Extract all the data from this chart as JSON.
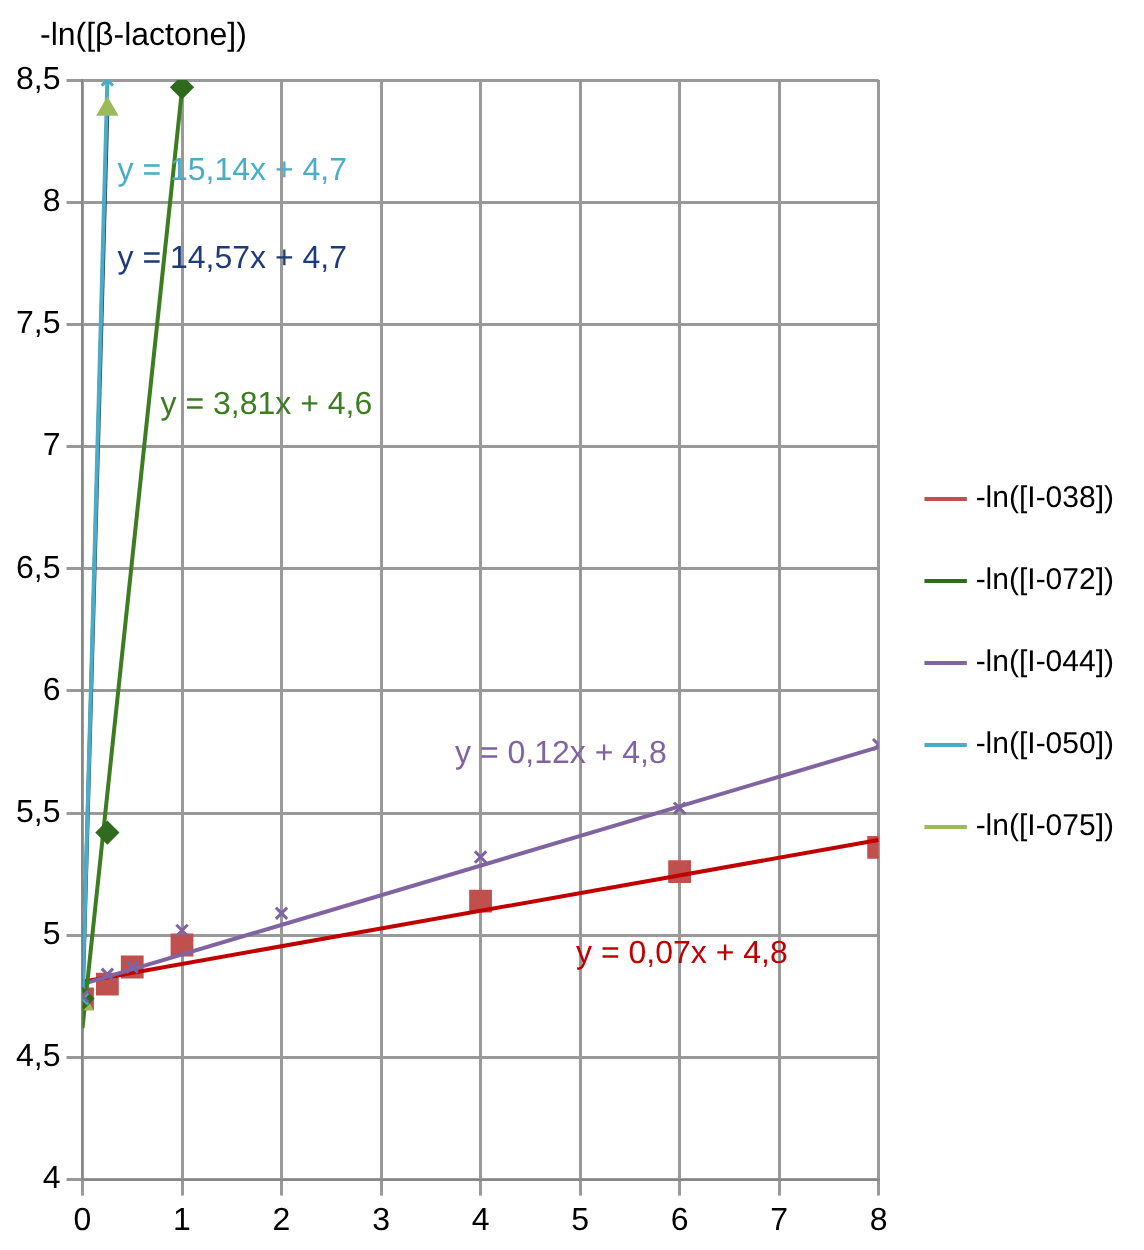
{
  "chart_data": {
    "type": "scatter",
    "ylabel": "-ln([β-lactone])",
    "xlim": [
      0,
      8
    ],
    "xticks": [
      0,
      1,
      2,
      3,
      4,
      5,
      6,
      7,
      8
    ],
    "ylim": [
      4,
      8.5
    ],
    "yticks": [
      4,
      {
        "value": 4.5,
        "label": "4,5"
      },
      5,
      {
        "value": 5.5,
        "label": "5,5"
      },
      6,
      {
        "value": 6.5,
        "label": "6,5"
      },
      7,
      {
        "value": 7.5,
        "label": "7,5"
      },
      8,
      {
        "value": 8.5,
        "label": "8,5"
      }
    ],
    "grid": true,
    "legend": "right",
    "series": [
      {
        "name": "-ln([I-038])",
        "color": "#c0504d",
        "marker": "square",
        "x": [
          0,
          0.25,
          0.5,
          1,
          4,
          6,
          8
        ],
        "values": [
          4.74,
          4.8,
          4.87,
          4.96,
          5.14,
          5.26,
          5.36
        ]
      },
      {
        "name": "-ln([I-072])",
        "color": "#2e6b1f",
        "marker": "diamond",
        "x": [
          0,
          0.25,
          1
        ],
        "values": [
          4.74,
          5.42,
          8.47
        ]
      },
      {
        "name": "-ln([I-044])",
        "color": "#8064a2",
        "marker": "cross",
        "x": [
          0,
          0.25,
          0.5,
          1,
          2,
          4,
          6,
          8
        ],
        "values": [
          4.75,
          4.84,
          4.87,
          5.02,
          5.09,
          5.32,
          5.52,
          5.78
        ]
      },
      {
        "name": "-ln([I-050])",
        "color": "#4bacc6",
        "marker": "cross",
        "x": [
          0,
          0.25
        ],
        "values": [
          4.74,
          8.5
        ]
      },
      {
        "name": "-ln([I-075])",
        "color": "#9bbb59",
        "marker": "triangle",
        "x": [
          0,
          0.25
        ],
        "values": [
          4.72,
          8.38
        ]
      },
      {
        "type": "line",
        "color": "#4bacc6",
        "marker": "none",
        "x": [
          0,
          0.25
        ],
        "values": [
          4.74,
          8.5
        ]
      },
      {
        "type": "line",
        "color": "#1f3a7a",
        "marker": "none",
        "x": [
          0,
          0.25
        ],
        "values": [
          4.72,
          8.38
        ]
      },
      {
        "type": "line",
        "color": "#3c7d22",
        "marker": "none",
        "x": [
          0,
          1
        ],
        "values": [
          4.62,
          8.46
        ]
      },
      {
        "type": "line",
        "color": "#8064a2",
        "marker": "none",
        "x": [
          0,
          8
        ],
        "values": [
          4.8,
          5.77
        ]
      },
      {
        "type": "line",
        "color": "#c00000",
        "marker": "none",
        "x": [
          0,
          8
        ],
        "values": [
          4.81,
          5.39
        ]
      }
    ],
    "annotations": [
      "y = 15,14x + 4,7",
      "y = 14,57x + 4,7",
      "y = 3,81x + 4,6",
      "y = 0,12x + 4,8",
      "y = 0,07x + 4,8"
    ]
  }
}
